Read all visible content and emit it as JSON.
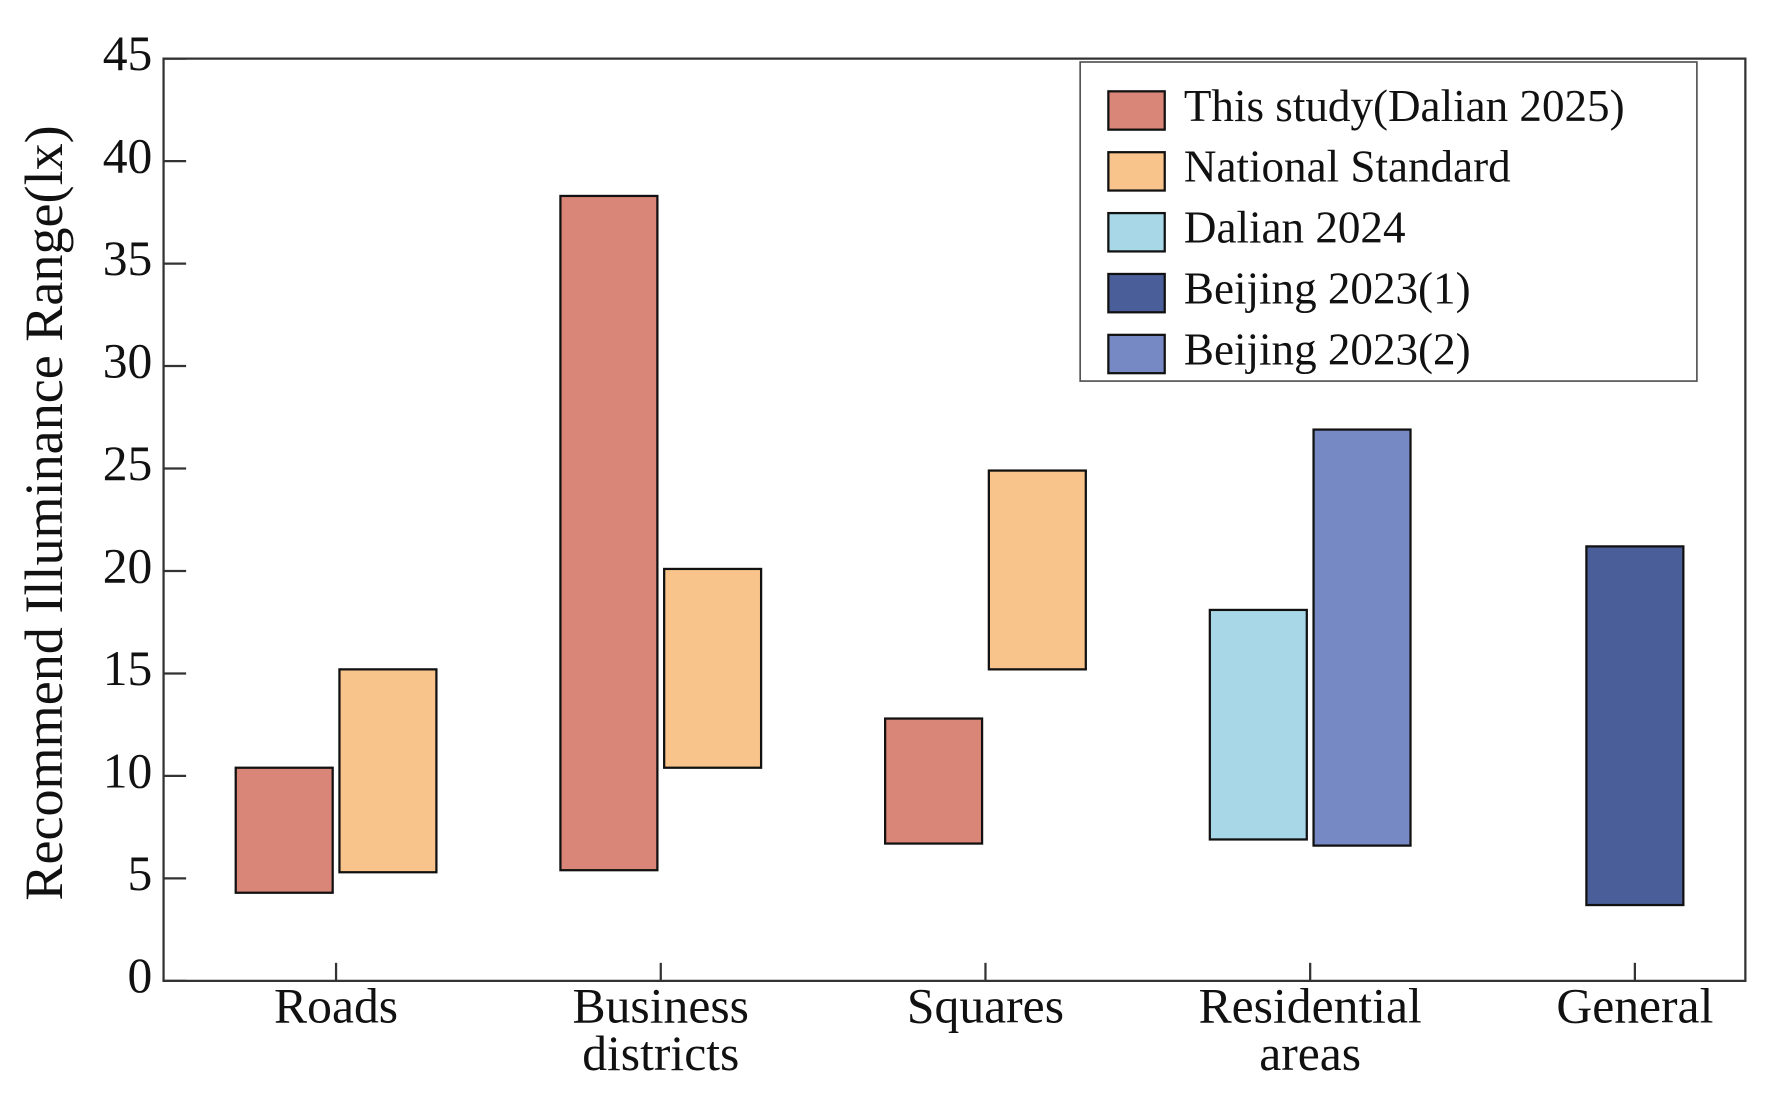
{
  "chart_data": {
    "type": "range-bar",
    "y_label": "Recommend Illuminance Range(lx)",
    "categories": [
      "Roads",
      "Business districts",
      "Squares",
      "Residential areas",
      "General"
    ],
    "series": [
      {
        "name": "This study(Dalian 2025)",
        "color": "#d98577",
        "values": [
          [
            4.3,
            10.4
          ],
          [
            5.4,
            38.3
          ],
          [
            6.7,
            12.8
          ],
          null,
          null
        ]
      },
      {
        "name": "National Standard",
        "color": "#f9c48b",
        "values": [
          [
            5.3,
            15.2
          ],
          [
            10.4,
            20.1
          ],
          [
            15.2,
            24.9
          ],
          null,
          null
        ]
      },
      {
        "name": "Dalian 2024",
        "color": "#a8d8e8",
        "values": [
          null,
          null,
          null,
          [
            6.9,
            18.1
          ],
          null
        ]
      },
      {
        "name": "Beijing 2023(1)",
        "color": "#4a5f9a",
        "values": [
          null,
          null,
          null,
          null,
          [
            3.7,
            21.2
          ]
        ]
      },
      {
        "name": "Beijing 2023(2)",
        "color": "#7789c4",
        "values": [
          null,
          null,
          null,
          [
            6.6,
            26.9
          ],
          null
        ]
      }
    ],
    "ylim": [
      0,
      45
    ],
    "yticks": [
      0,
      5,
      10,
      15,
      20,
      25,
      30,
      35,
      40,
      45
    ]
  }
}
